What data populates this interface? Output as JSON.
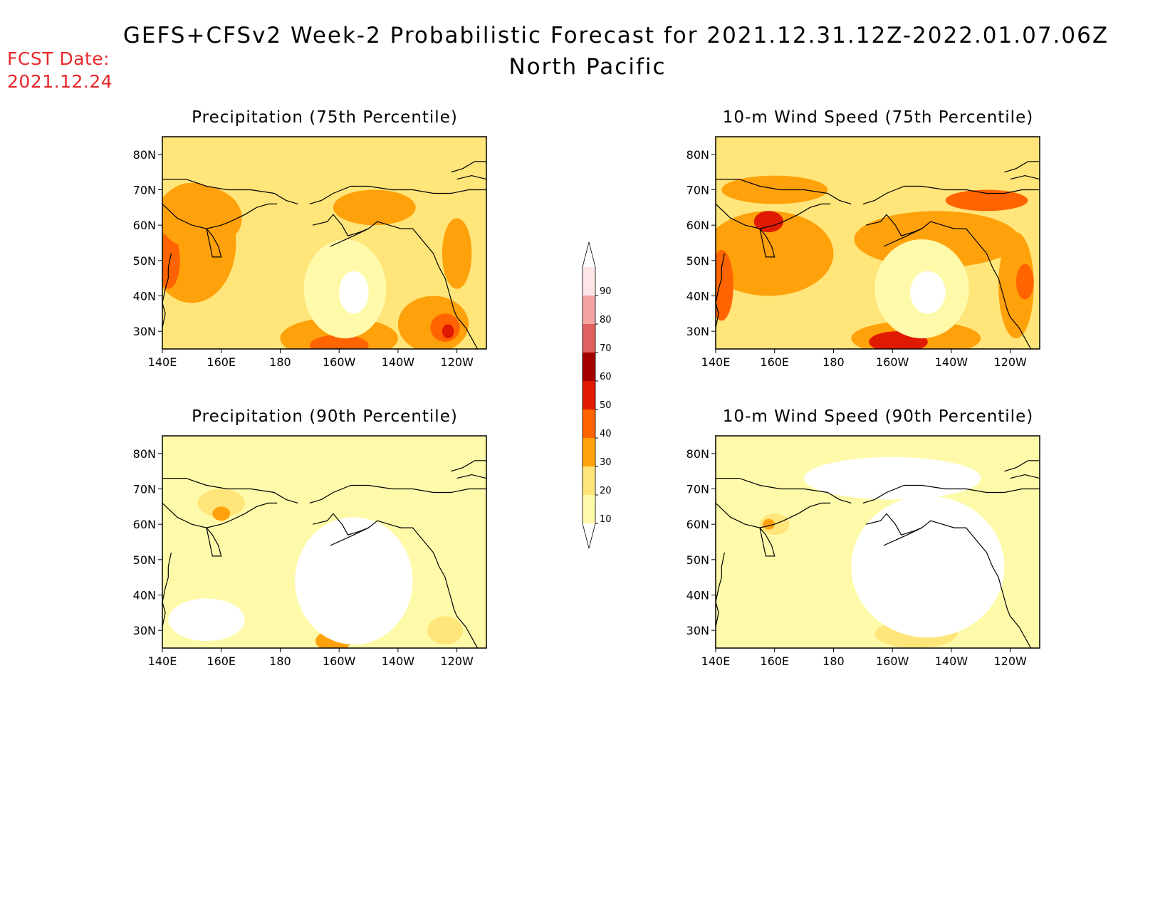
{
  "header": {
    "title": "GEFS+CFSv2 Week-2 Probabilistic Forecast for 2021.12.31.12Z-2022.01.07.06Z",
    "subtitle": "North Pacific",
    "fcst_label": "FCST Date:",
    "fcst_date": "2021.12.24"
  },
  "axes": {
    "lat_ticks": [
      "80N",
      "70N",
      "60N",
      "50N",
      "40N",
      "30N"
    ],
    "lon_ticks": [
      "140E",
      "160E",
      "180",
      "160W",
      "140W",
      "120W"
    ]
  },
  "colorbar": {
    "levels": [
      10,
      20,
      30,
      40,
      50,
      60,
      70,
      80,
      90
    ],
    "colors": [
      "#fffaaa",
      "#ffe57a",
      "#ffa10a",
      "#ff6400",
      "#e01a00",
      "#a50000",
      "#e06060",
      "#f4a3a3",
      "#ffe5e8"
    ]
  },
  "panels": [
    {
      "id": "precip75",
      "title": "Precipitation (75th Percentile)",
      "blobs": [
        {
          "lon": 150,
          "lat": 55,
          "rx": 15,
          "ry": 17,
          "level": 2
        },
        {
          "lon": 155,
          "lat": 62,
          "rx": 10,
          "ry": 6,
          "level": 3
        },
        {
          "lon": 142,
          "lat": 50,
          "rx": 4,
          "ry": 8,
          "level": 3
        },
        {
          "lon": 153,
          "lat": 62,
          "rx": 14,
          "ry": 9,
          "level": 2
        },
        {
          "lon": 212,
          "lat": 65,
          "rx": 14,
          "ry": 5,
          "level": 2
        },
        {
          "lon": 200,
          "lat": 28,
          "rx": 20,
          "ry": 6,
          "level": 2
        },
        {
          "lon": 200,
          "lat": 26,
          "rx": 10,
          "ry": 3,
          "level": 3
        },
        {
          "lon": 232,
          "lat": 32,
          "rx": 12,
          "ry": 8,
          "level": 2
        },
        {
          "lon": 236,
          "lat": 31,
          "rx": 5,
          "ry": 4,
          "level": 3
        },
        {
          "lon": 237,
          "lat": 30,
          "rx": 2,
          "ry": 2,
          "level": 4
        },
        {
          "lon": 240,
          "lat": 52,
          "rx": 5,
          "ry": 10,
          "level": 2
        },
        {
          "lon": 202,
          "lat": 42,
          "rx": 14,
          "ry": 14,
          "level": 0
        },
        {
          "lon": 205,
          "lat": 41,
          "rx": 5,
          "ry": 6,
          "level": -1
        }
      ]
    },
    {
      "id": "wind75",
      "title": "10-m Wind Speed (75th Percentile)",
      "blobs": [
        {
          "lon": 158,
          "lat": 52,
          "rx": 22,
          "ry": 12,
          "level": 2
        },
        {
          "lon": 160,
          "lat": 70,
          "rx": 18,
          "ry": 4,
          "level": 2
        },
        {
          "lon": 158,
          "lat": 61,
          "rx": 5,
          "ry": 3,
          "level": 4
        },
        {
          "lon": 142,
          "lat": 43,
          "rx": 4,
          "ry": 10,
          "level": 3
        },
        {
          "lon": 215,
          "lat": 56,
          "rx": 28,
          "ry": 8,
          "level": 2
        },
        {
          "lon": 232,
          "lat": 67,
          "rx": 14,
          "ry": 3,
          "level": 3
        },
        {
          "lon": 208,
          "lat": 28,
          "rx": 22,
          "ry": 5,
          "level": 2
        },
        {
          "lon": 202,
          "lat": 27,
          "rx": 10,
          "ry": 3,
          "level": 4
        },
        {
          "lon": 242,
          "lat": 43,
          "rx": 6,
          "ry": 15,
          "level": 2
        },
        {
          "lon": 245,
          "lat": 44,
          "rx": 3,
          "ry": 5,
          "level": 3
        },
        {
          "lon": 210,
          "lat": 42,
          "rx": 16,
          "ry": 14,
          "level": 0
        },
        {
          "lon": 212,
          "lat": 41,
          "rx": 6,
          "ry": 6,
          "level": -1
        }
      ]
    },
    {
      "id": "precip90",
      "title": "Precipitation (90th Percentile)",
      "blobs": [
        {
          "lon": 160,
          "lat": 66,
          "rx": 8,
          "ry": 4,
          "level": 1
        },
        {
          "lon": 160,
          "lat": 63,
          "rx": 3,
          "ry": 2,
          "level": 2
        },
        {
          "lon": 198,
          "lat": 27,
          "rx": 6,
          "ry": 3,
          "level": 2
        },
        {
          "lon": 236,
          "lat": 30,
          "rx": 6,
          "ry": 4,
          "level": 1
        },
        {
          "lon": 205,
          "lat": 44,
          "rx": 20,
          "ry": 18,
          "level": -1
        },
        {
          "lon": 155,
          "lat": 33,
          "rx": 13,
          "ry": 6,
          "level": -1
        }
      ]
    },
    {
      "id": "wind90",
      "title": "10-m Wind Speed (90th Percentile)",
      "blobs": [
        {
          "lon": 160,
          "lat": 60,
          "rx": 5,
          "ry": 3,
          "level": 1
        },
        {
          "lon": 158,
          "lat": 60,
          "rx": 2,
          "ry": 1.5,
          "level": 2
        },
        {
          "lon": 208,
          "lat": 29,
          "rx": 14,
          "ry": 4,
          "level": 1
        },
        {
          "lon": 212,
          "lat": 48,
          "rx": 26,
          "ry": 20,
          "level": -1
        },
        {
          "lon": 200,
          "lat": 73,
          "rx": 30,
          "ry": 6,
          "level": -1
        }
      ]
    }
  ]
}
